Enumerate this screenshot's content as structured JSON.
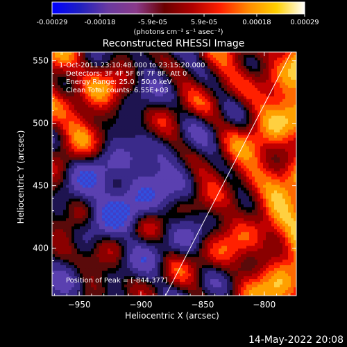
{
  "colorbar": {
    "tick_labels": [
      "-0.00029",
      "-0.00018",
      "-5.9e-05",
      "5.9e-05",
      "0.00018",
      "0.00029"
    ],
    "tick_values": [
      -0.00029,
      -0.00018,
      -5.9e-05,
      5.9e-05,
      0.00018,
      0.00029
    ],
    "range": [
      -0.00029,
      0.00029
    ],
    "units": "(photons cm⁻² s⁻¹ asec⁻²)",
    "colors": [
      "#0000ff",
      "#2020c0",
      "#6a3aa0",
      "#8a3a8a",
      "#6a0000",
      "#b00000",
      "#ff2000",
      "#ff8a00",
      "#ffd000",
      "#ffffff"
    ]
  },
  "chart_data": {
    "type": "heatmap",
    "title": "Reconstructed RHESSI Image",
    "xlabel": "Heliocentric X (arcsec)",
    "ylabel": "Heliocentric Y (arcsec)",
    "xlim": [
      -972,
      -774
    ],
    "ylim": [
      362,
      557
    ],
    "xticks": [
      -950,
      -900,
      -850,
      -800
    ],
    "yticks": [
      400,
      450,
      500,
      550
    ],
    "xtick_labels": [
      "−950",
      "−900",
      "−850",
      "−800"
    ],
    "ytick_labels": [
      "400",
      "450",
      "500",
      "550"
    ],
    "annotations": [
      "1-Oct-2011 23:10:48.000 to 23:15:20.000",
      "Detectors: 3F 4F 5F 6F 7F 8F, Att 0",
      "Energy Range: 25.0 - 50.0 keV",
      "Clean    Total counts: 6.55E+03"
    ],
    "peak_label": "Position of Peak = [-844,377]",
    "peak": [
      -844,
      377
    ],
    "limb_line": {
      "x": [
        -880,
        -778
      ],
      "y": [
        362,
        557
      ]
    }
  },
  "timestamp": "14-May-2022 20:08"
}
